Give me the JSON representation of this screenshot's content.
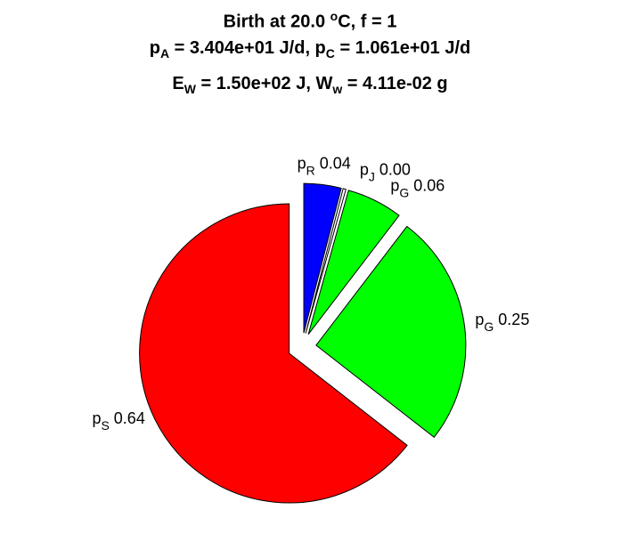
{
  "title": {
    "line1": {
      "prefix": "Birth at 20.0 ",
      "sup": "o",
      "suffix": "C, f = 1"
    },
    "line2": {
      "a": "p",
      "a_sub": "A",
      "b": " = 3.404e+01 J/d, p",
      "b_sub": "C",
      "c": " = 1.061e+01 J/d"
    },
    "line3": {
      "a": "E",
      "a_sub": "W",
      "b": " = 1.50e+02 J, W",
      "b_sub": "w",
      "c": " = 4.11e-02 g"
    }
  },
  "chart_data": {
    "type": "pie",
    "slices": [
      {
        "symbol": "p",
        "sub": "R",
        "value": 0.04,
        "label": "0.04",
        "color": "#0000ff",
        "exploded": true
      },
      {
        "symbol": "p",
        "sub": "J",
        "value": 0.003,
        "label": "0.00",
        "color": "#ffffff",
        "exploded": true
      },
      {
        "symbol": "p",
        "sub": "G",
        "value": 0.06,
        "label": "0.06",
        "color": "#00ff00",
        "exploded": true
      },
      {
        "symbol": "p",
        "sub": "G",
        "value": 0.25,
        "label": "0.25",
        "color": "#00ff00",
        "exploded": true
      },
      {
        "symbol": "p",
        "sub": "S",
        "value": 0.64,
        "label": "0.64",
        "color": "#ff0000",
        "exploded": true
      }
    ]
  }
}
